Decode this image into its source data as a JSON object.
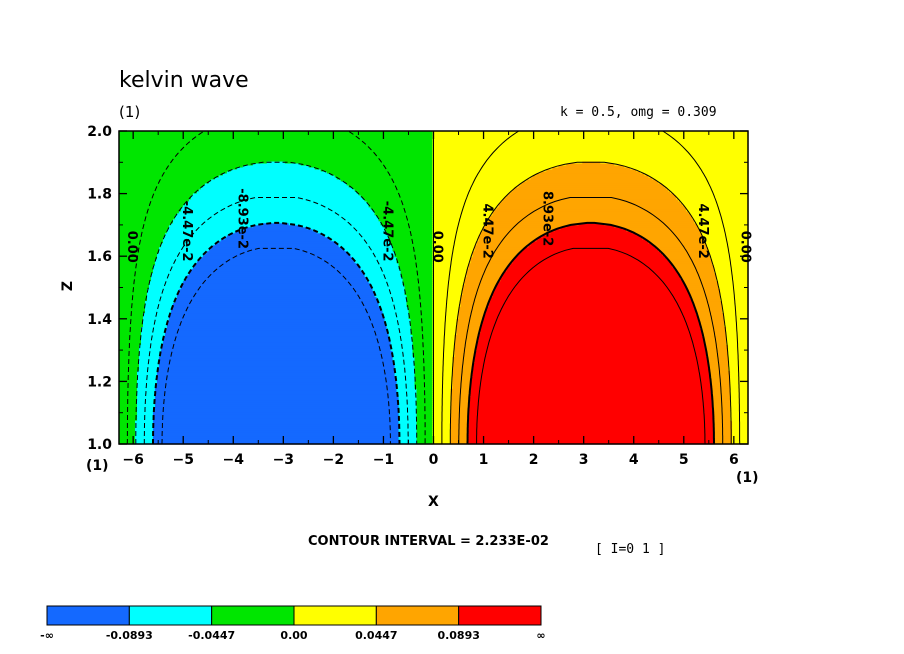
{
  "title": "kelvin wave",
  "subtitle_left": "(1)",
  "subtitle_right": "k = 0.5, omg = 0.309",
  "xaxis_unit": "(1)",
  "xaxis_unit_right": "(1)",
  "contour_interval_text": "CONTOUR INTERVAL = 2.233E-02",
  "index_text": "[ I=0 1 ]",
  "colors": {
    "deep_blue": "#1469ff",
    "cyan": "#00ffff",
    "green": "#00e600",
    "yellow": "#ffff00",
    "orange": "#ffa500",
    "red": "#ff0000"
  },
  "chart_data": {
    "type": "heatmap",
    "subtype": "filled contour",
    "function": "value = 0.1339 * sin(k*x) * exp(-2*(z-1)^2) ... (filled contour of a Kelvin wave field)",
    "k": 0.5,
    "omg": 0.309,
    "xlabel": "X",
    "ylabel": "Z",
    "xlim": [
      -6.283,
      6.283
    ],
    "ylim": [
      1.0,
      2.0
    ],
    "xticks": [
      -6,
      -5,
      -4,
      -3,
      -2,
      -1,
      0,
      1,
      2,
      3,
      4,
      5,
      6
    ],
    "yticks": [
      1.0,
      1.2,
      1.4,
      1.6,
      1.8,
      2.0
    ],
    "ytick_labels": [
      "1.0",
      "1.2",
      "1.4",
      "1.6",
      "1.8",
      "2.0"
    ],
    "contour_interval": 0.02233,
    "contour_labels": [
      {
        "text": "0.00",
        "x": -6.1,
        "z": 1.63
      },
      {
        "text": "-4.47e-2",
        "x": -5.0,
        "z": 1.68
      },
      {
        "text": "-8.93e-2",
        "x": -3.9,
        "z": 1.72
      },
      {
        "text": "-4.47e-2",
        "x": -1.0,
        "z": 1.68
      },
      {
        "text": "0.00",
        "x": 0.0,
        "z": 1.63
      },
      {
        "text": "4.47e-2",
        "x": 1.0,
        "z": 1.68
      },
      {
        "text": "8.93e-2",
        "x": 2.2,
        "z": 1.72
      },
      {
        "text": "4.47e-2",
        "x": 5.3,
        "z": 1.68
      },
      {
        "text": "0.00",
        "x": 6.15,
        "z": 1.63
      }
    ],
    "colorbar": {
      "labels": [
        "-∞",
        "-0.0893",
        "-0.0447",
        "0.00",
        "0.0447",
        "0.0893",
        "∞"
      ],
      "colors": [
        "#1469ff",
        "#00ffff",
        "#00e600",
        "#ffff00",
        "#ffa500",
        "#ff0000"
      ]
    }
  }
}
